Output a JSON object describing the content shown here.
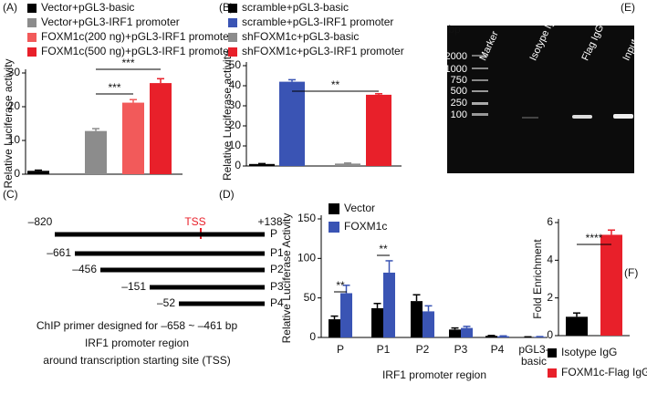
{
  "chart_data": [
    {
      "type": "bar",
      "panel": "(A)",
      "y_label": "Relative Luciferase activity",
      "ylim": [
        0,
        30
      ],
      "yticks": [
        0,
        10,
        20,
        30
      ],
      "series": [
        {
          "name": "Vector+pGL3-basic",
          "color": "#000000",
          "values": [
            1.0
          ],
          "errors": [
            0.2
          ]
        },
        {
          "name": "Vector+pGL3-IRF1 promoter",
          "color": "#8c8c8c",
          "values": [
            12.8
          ],
          "errors": [
            0.7
          ]
        },
        {
          "name": "FOXM1c(200 ng)+pGL3-IRF1 promoter",
          "color": "#f25a5a",
          "values": [
            21.2
          ],
          "errors": [
            0.9
          ]
        },
        {
          "name": "FOXM1c(500 ng)+pGL3-IRF1 promoter",
          "color": "#e8202a",
          "values": [
            27.0
          ],
          "errors": [
            1.3
          ]
        }
      ],
      "annotations": [
        "***",
        "***"
      ]
    },
    {
      "type": "bar",
      "panel": "(B)",
      "y_label": "Relative Luciferase activity",
      "ylim": [
        0,
        50
      ],
      "yticks": [
        0,
        10,
        20,
        30,
        40,
        50
      ],
      "series": [
        {
          "name": "scramble+pGL3-basic",
          "color": "#000000",
          "values": [
            1.0
          ],
          "errors": [
            0.2
          ]
        },
        {
          "name": "scramble+pGL3-IRF1 promoter",
          "color": "#3a54b4",
          "values": [
            42.0
          ],
          "errors": [
            1.0
          ]
        },
        {
          "name": "shFOXM1c+pGL3-basic",
          "color": "#8c8c8c",
          "values": [
            1.2
          ],
          "errors": [
            0.3
          ]
        },
        {
          "name": "shFOXM1c+pGL3-IRF1 promoter",
          "color": "#e8202a",
          "values": [
            35.5
          ],
          "errors": [
            0.5
          ]
        }
      ],
      "annotations": [
        "**"
      ]
    },
    {
      "type": "bar",
      "panel": "(D)",
      "y_label": "Relative Luciferase Activity",
      "x_label": "IRF1 promoter region",
      "ylim": [
        0,
        150
      ],
      "yticks": [
        0,
        50,
        100,
        150
      ],
      "categories": [
        "P",
        "P1",
        "P2",
        "P3",
        "P4",
        "pGL3-basic"
      ],
      "series": [
        {
          "name": "Vector",
          "color": "#000000",
          "values": [
            23,
            37,
            46,
            10,
            2,
            0.5
          ],
          "errors": [
            4,
            6,
            8,
            2,
            0.5,
            0.3
          ]
        },
        {
          "name": "FOXM1c",
          "color": "#3a54b4",
          "values": [
            56,
            82,
            33,
            12,
            1.5,
            0.8
          ],
          "errors": [
            10,
            15,
            7,
            2,
            0.5,
            0.3
          ]
        }
      ],
      "annotations": [
        "**",
        "**"
      ]
    },
    {
      "type": "bar",
      "panel": "(F)",
      "y_label": "Fold Enrichment",
      "ylim": [
        0,
        6
      ],
      "yticks": [
        0,
        2,
        4,
        6
      ],
      "series": [
        {
          "name": "Isotype IgG",
          "color": "#000000",
          "values": [
            1.0
          ],
          "errors": [
            0.2
          ]
        },
        {
          "name": "FOXM1c-Flag IgG",
          "color": "#e8202a",
          "values": [
            5.35
          ],
          "errors": [
            0.25
          ]
        }
      ],
      "annotations": [
        "****"
      ]
    }
  ],
  "promoter_diagram": {
    "panel": "(C)",
    "start": "–820",
    "end": "+138",
    "tss": "TSS",
    "fragments": [
      {
        "name": "P"
      },
      {
        "name": "P1",
        "start": "–661"
      },
      {
        "name": "P2",
        "start": "–456"
      },
      {
        "name": "P3",
        "start": "–151"
      },
      {
        "name": "P4",
        "start": "–52"
      }
    ],
    "caption": [
      "ChIP primer designed for –658 ~ –461 bp",
      "IRF1 promoter region",
      "around transcription starting site (TSS)"
    ]
  },
  "gel": {
    "panel": "(E)",
    "unit": "bp",
    "lanes": [
      "Marker",
      "Isotype IgG",
      "Flag IgG",
      "Input"
    ],
    "ladder": [
      "2000",
      "1000",
      "750",
      "500",
      "250",
      "100"
    ]
  }
}
